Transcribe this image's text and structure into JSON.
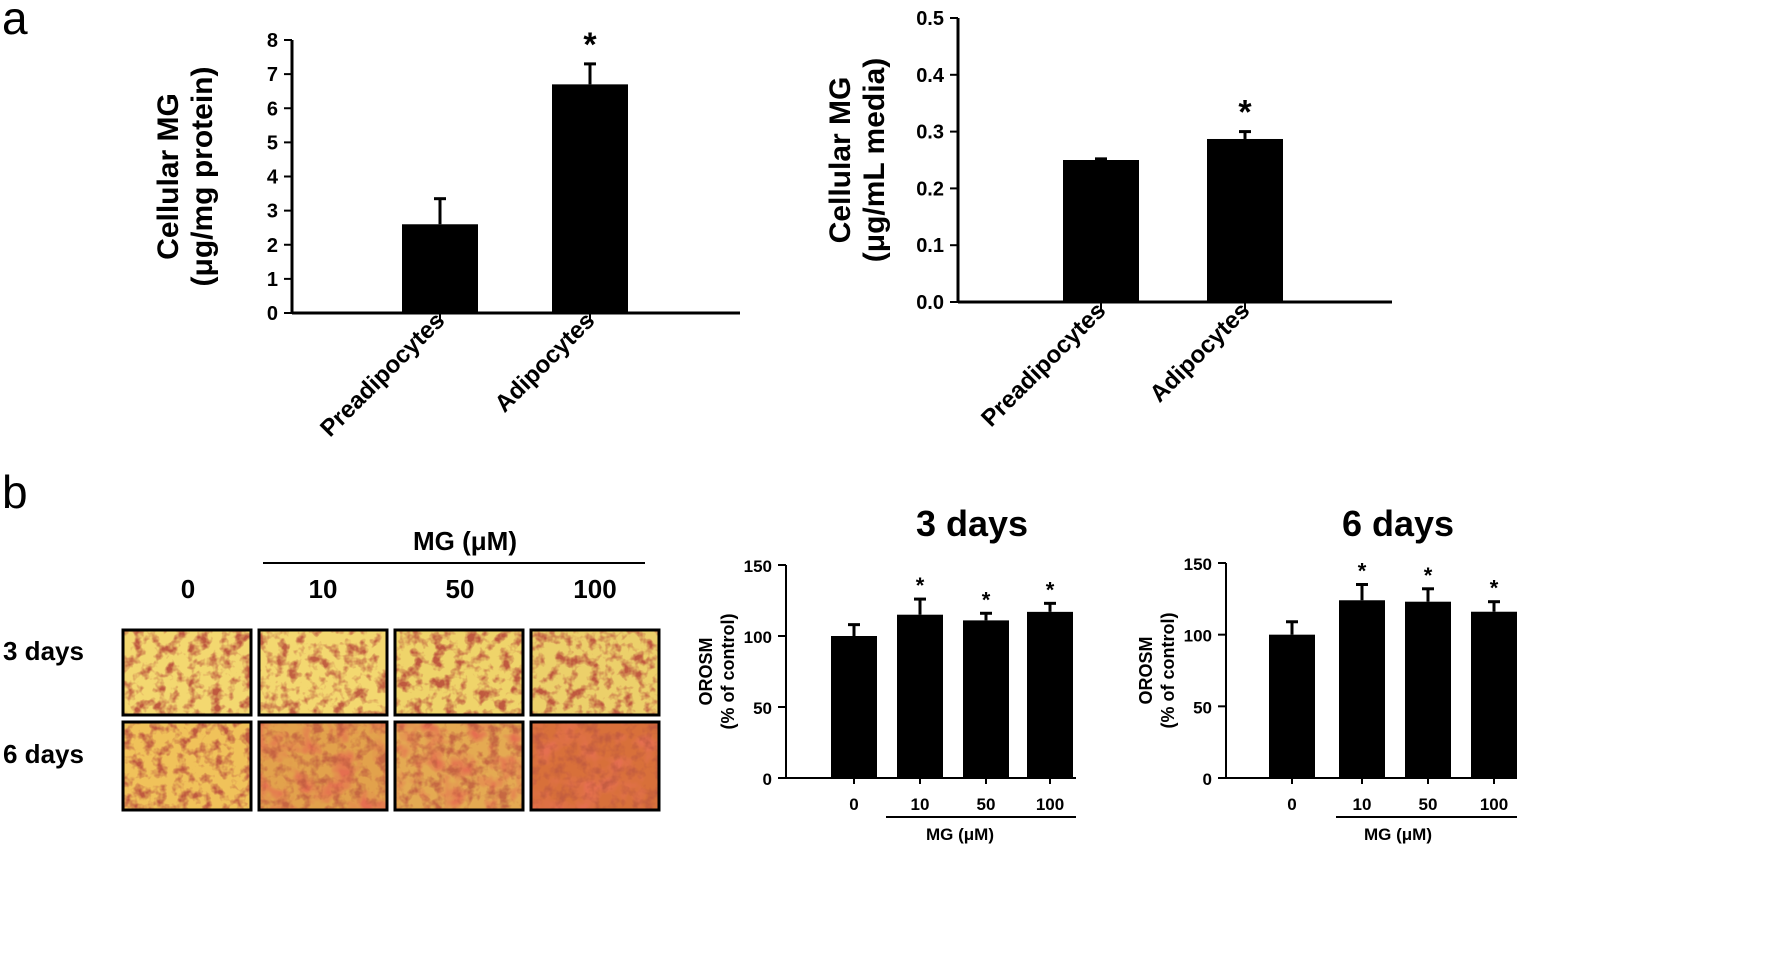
{
  "panels": {
    "a": "a",
    "b": "b"
  },
  "micrographs": {
    "header": "MG (μM)",
    "columns": [
      "0",
      "10",
      "50",
      "100"
    ],
    "rows": [
      "3 days",
      "6 days"
    ]
  },
  "chart_data": [
    {
      "id": "a1",
      "type": "bar",
      "categories": [
        "Preadipocytes",
        "Adipocytes"
      ],
      "values": [
        2.6,
        6.7
      ],
      "errors": [
        0.75,
        0.6
      ],
      "significance": [
        "",
        "*"
      ],
      "ylabel": [
        "Cellular MG",
        "(μg/mg protein)"
      ],
      "ylim": [
        0,
        8
      ],
      "yticks": [
        "0",
        "1",
        "2",
        "3",
        "4",
        "5",
        "6",
        "7",
        "8"
      ]
    },
    {
      "id": "a2",
      "type": "bar",
      "categories": [
        "Preadipocytes",
        "Adipocytes"
      ],
      "values": [
        0.25,
        0.287
      ],
      "errors": [
        0.002,
        0.013
      ],
      "significance": [
        "",
        "*"
      ],
      "ylabel": [
        "Cellular MG",
        "(μg/mL media)"
      ],
      "ylim": [
        0,
        0.5
      ],
      "yticks": [
        "0.0",
        "0.1",
        "0.2",
        "0.3",
        "0.4",
        "0.5"
      ]
    },
    {
      "id": "b1",
      "type": "bar",
      "title": "3 days",
      "categories": [
        "0",
        "10",
        "50",
        "100"
      ],
      "values": [
        100,
        115,
        111,
        117
      ],
      "errors": [
        8,
        11,
        5,
        6
      ],
      "significance": [
        "",
        "*",
        "*",
        "*"
      ],
      "ylabel": [
        "OROSM",
        "(% of control)"
      ],
      "xlabel": "MG (μM)",
      "ylim": [
        0,
        150
      ],
      "yticks": [
        "0",
        "50",
        "100",
        "150"
      ]
    },
    {
      "id": "b2",
      "type": "bar",
      "title": "6 days",
      "categories": [
        "0",
        "10",
        "50",
        "100"
      ],
      "values": [
        100,
        124,
        123,
        116
      ],
      "errors": [
        9,
        11,
        9,
        7
      ],
      "significance": [
        "",
        "*",
        "*",
        "*"
      ],
      "ylabel": [
        "OROSM",
        "(% of control)"
      ],
      "xlabel": "MG (μM)",
      "ylim": [
        0,
        150
      ],
      "yticks": [
        "0",
        "50",
        "100",
        "150"
      ]
    }
  ]
}
